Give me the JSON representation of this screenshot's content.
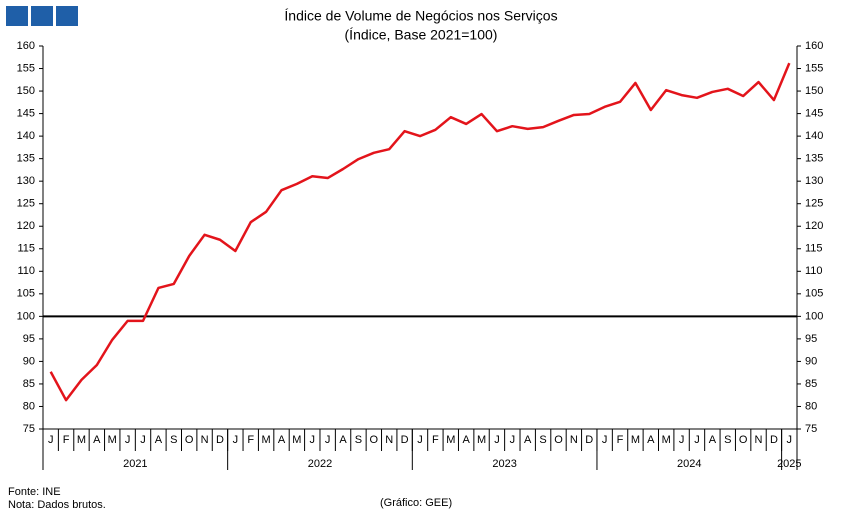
{
  "chart_data": {
    "type": "line",
    "title": "Índice de Volume de Negócios nos Serviços",
    "subtitle": "(Índice, Base 2021=100)",
    "categories": [
      "J",
      "F",
      "M",
      "A",
      "M",
      "J",
      "J",
      "A",
      "S",
      "O",
      "N",
      "D",
      "J",
      "F",
      "M",
      "A",
      "M",
      "J",
      "J",
      "A",
      "S",
      "O",
      "N",
      "D",
      "J",
      "F",
      "M",
      "A",
      "M",
      "J",
      "J",
      "A",
      "S",
      "O",
      "N",
      "D",
      "J",
      "F",
      "M",
      "A",
      "M",
      "J",
      "J",
      "A",
      "S",
      "O",
      "N",
      "D",
      "J"
    ],
    "years": [
      "2021",
      "2022",
      "2023",
      "2024",
      "2025"
    ],
    "series": [
      {
        "name": "Índice de Volume de Negócios nos Serviços",
        "color": "#e3141b",
        "values": [
          87.7,
          81.4,
          85.9,
          89.2,
          94.8,
          99,
          99,
          106.3,
          107.2,
          113.4,
          118.1,
          117,
          114.5,
          120.9,
          123.2,
          128,
          129.4,
          131.1,
          130.7,
          132.7,
          134.9,
          136.3,
          137.1,
          141.1,
          140,
          141.4,
          144.2,
          142.7,
          144.9,
          141.1,
          142.2,
          141.6,
          142,
          143.4,
          144.7,
          144.9,
          146.5,
          147.6,
          151.8,
          145.8,
          150.2,
          149.1,
          148.5,
          149.8,
          150.5,
          148.9,
          152,
          148,
          156.2
        ]
      }
    ],
    "reference_line": 100,
    "reference_color": "#000000",
    "ylim": [
      75,
      160
    ],
    "yticks": [
      75,
      80,
      85,
      90,
      95,
      100,
      105,
      110,
      115,
      120,
      125,
      130,
      135,
      140,
      145,
      150,
      155,
      160
    ],
    "y2lim": [
      75,
      160
    ],
    "y2ticks": [
      75,
      80,
      85,
      90,
      95,
      100,
      105,
      110,
      115,
      120,
      125,
      130,
      135,
      140,
      145,
      150,
      155,
      160
    ],
    "source": "Fonte: INE",
    "note": "Nota: Dados brutos.",
    "credit": "(Gráfico: GEE)"
  }
}
